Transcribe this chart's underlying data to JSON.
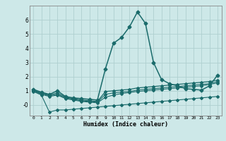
{
  "title": "",
  "xlabel": "Humidex (Indice chaleur)",
  "background_color": "#cde8e8",
  "grid_color": "#afd0d0",
  "line_color": "#1a6b6b",
  "xlim": [
    -0.5,
    23.5
  ],
  "ylim": [
    -0.75,
    7.0
  ],
  "xticks": [
    0,
    1,
    2,
    3,
    4,
    5,
    6,
    7,
    8,
    9,
    10,
    11,
    12,
    13,
    14,
    15,
    16,
    17,
    18,
    19,
    20,
    21,
    22,
    23
  ],
  "yticks": [
    0,
    1,
    2,
    3,
    4,
    5,
    6
  ],
  "ytick_labels": [
    "-0",
    "1",
    "2",
    "3",
    "4",
    "5",
    "6"
  ],
  "series": [
    {
      "x": [
        0,
        1,
        2,
        3,
        4,
        5,
        6,
        7,
        8,
        9,
        10,
        11,
        12,
        13,
        14,
        15,
        16,
        17,
        18,
        19,
        20,
        21,
        22,
        23
      ],
      "y": [
        1.1,
        0.9,
        0.75,
        1.0,
        0.6,
        0.5,
        0.45,
        0.4,
        0.35,
        2.55,
        4.35,
        4.75,
        5.5,
        6.55,
        5.75,
        3.0,
        1.8,
        1.5,
        1.35,
        1.15,
        1.1,
        1.05,
        1.35,
        2.1
      ],
      "marker": "D",
      "markersize": 2.5,
      "linewidth": 1.1
    },
    {
      "x": [
        0,
        1,
        2,
        3,
        4,
        5,
        6,
        7,
        8,
        9,
        10,
        11,
        12,
        13,
        14,
        15,
        16,
        17,
        18,
        19,
        20,
        21,
        22,
        23
      ],
      "y": [
        1.05,
        0.85,
        0.7,
        0.85,
        0.55,
        0.45,
        0.35,
        0.3,
        0.25,
        0.95,
        1.0,
        1.05,
        1.1,
        1.2,
        1.25,
        1.3,
        1.35,
        1.4,
        1.45,
        1.5,
        1.55,
        1.6,
        1.65,
        1.75
      ],
      "marker": "D",
      "markersize": 2.0,
      "linewidth": 0.9
    },
    {
      "x": [
        0,
        1,
        2,
        3,
        4,
        5,
        6,
        7,
        8,
        9,
        10,
        11,
        12,
        13,
        14,
        15,
        16,
        17,
        18,
        19,
        20,
        21,
        22,
        23
      ],
      "y": [
        1.0,
        0.8,
        0.65,
        0.75,
        0.5,
        0.4,
        0.3,
        0.25,
        0.2,
        0.75,
        0.85,
        0.9,
        0.95,
        1.05,
        1.1,
        1.15,
        1.2,
        1.25,
        1.3,
        1.35,
        1.4,
        1.45,
        1.5,
        1.65
      ],
      "marker": "D",
      "markersize": 2.0,
      "linewidth": 0.8
    },
    {
      "x": [
        0,
        1,
        2,
        3,
        4,
        5,
        6,
        7,
        8,
        9,
        10,
        11,
        12,
        13,
        14,
        15,
        16,
        17,
        18,
        19,
        20,
        21,
        22,
        23
      ],
      "y": [
        1.0,
        0.75,
        0.6,
        0.7,
        0.45,
        0.35,
        0.25,
        0.2,
        0.15,
        0.55,
        0.7,
        0.8,
        0.88,
        0.95,
        1.0,
        1.05,
        1.1,
        1.15,
        1.2,
        1.25,
        1.3,
        1.35,
        1.45,
        1.55
      ],
      "marker": "D",
      "markersize": 2.0,
      "linewidth": 0.8
    },
    {
      "x": [
        0,
        1,
        2,
        3,
        4,
        5,
        6,
        7,
        8,
        9,
        10,
        11,
        12,
        13,
        14,
        15,
        16,
        17,
        18,
        19,
        20,
        21,
        22,
        23
      ],
      "y": [
        0.95,
        0.7,
        -0.5,
        -0.35,
        -0.35,
        -0.3,
        -0.25,
        -0.2,
        -0.15,
        -0.1,
        -0.05,
        0.0,
        0.05,
        0.1,
        0.15,
        0.2,
        0.25,
        0.3,
        0.35,
        0.4,
        0.45,
        0.5,
        0.55,
        0.6
      ],
      "marker": "D",
      "markersize": 2.0,
      "linewidth": 0.8
    }
  ]
}
